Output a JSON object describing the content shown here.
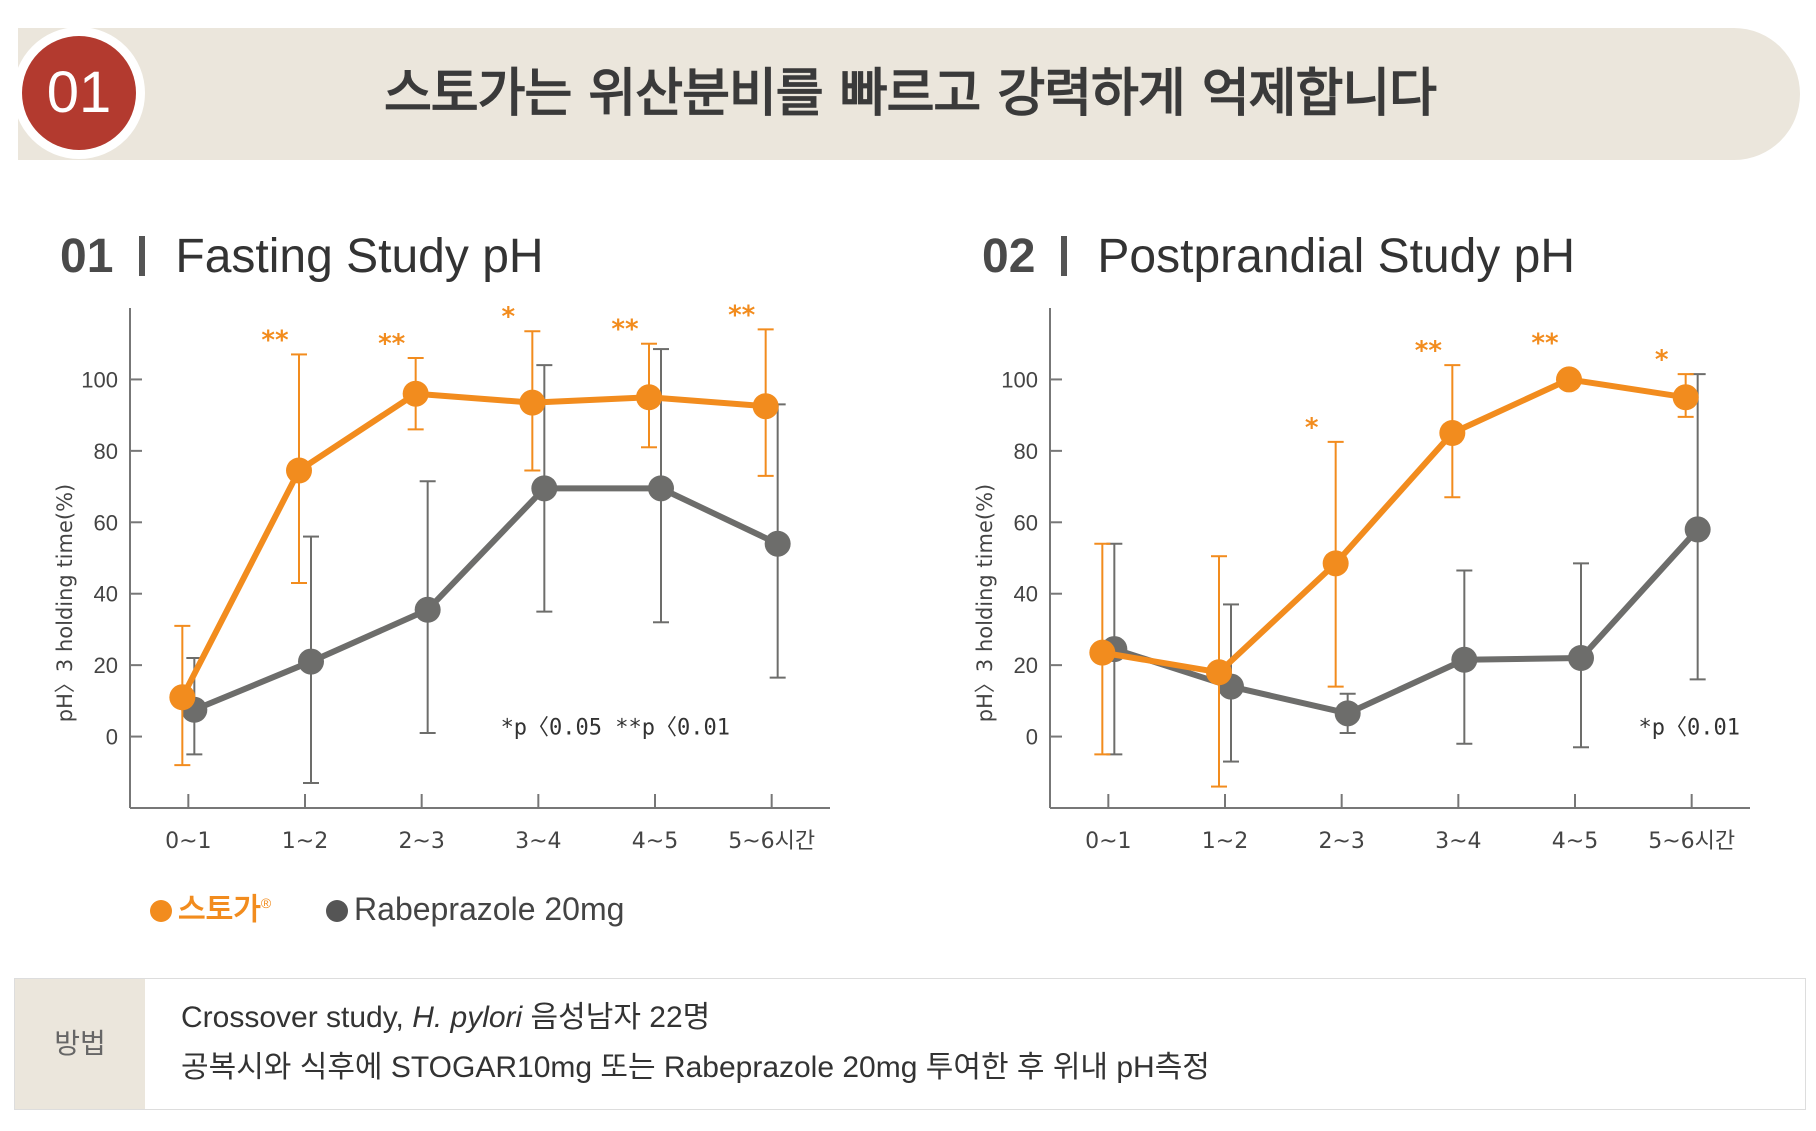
{
  "header": {
    "badge": "01",
    "title": "스토가는 위산분비를 빠르고 강력하게 억제합니다"
  },
  "charts": [
    {
      "number": "01",
      "title": "Fasting Study pH"
    },
    {
      "number": "02",
      "title": "Postprandial Study pH"
    }
  ],
  "legend": [
    {
      "label": "스토가",
      "mark": "®",
      "color": "#f28c1e"
    },
    {
      "label": "Rabeprazole 20mg",
      "color": "#6d6d6b"
    }
  ],
  "method": {
    "label": "방법",
    "line1_prefix": "Crossover study, ",
    "line1_italic": "H. pylori",
    "line1_suffix": " 음성남자 22명",
    "line2": "공복시와 식후에 STOGAR10mg 또는 Rabeprazole 20mg 투여한 후 위내 pH측정"
  },
  "colors": {
    "stogar": "#f28c1e",
    "rabeprazole": "#6d6d6b",
    "accent_badge": "#b33a2f",
    "banner": "#ebe6dc"
  },
  "chart_data": [
    {
      "type": "line",
      "title": "Fasting Study pH",
      "ylabel": "pH〉3 holding time(%)",
      "categories": [
        "0~1",
        "1~2",
        "2~3",
        "3~4",
        "4~5",
        "5~6시간"
      ],
      "yticks": [
        0,
        20,
        40,
        60,
        80,
        100
      ],
      "ylim": [
        -20,
        120
      ],
      "series": [
        {
          "name": "스토가",
          "values": [
            11,
            74.5,
            96,
            93.5,
            95,
            92.5
          ],
          "err_low": [
            -8,
            43,
            86,
            74.5,
            81,
            73
          ],
          "err_high": [
            31,
            107,
            106,
            113.5,
            110,
            114
          ]
        },
        {
          "name": "Rabeprazole 20mg",
          "values": [
            7.5,
            21,
            35.5,
            69.5,
            69.5,
            54
          ],
          "err_low": [
            -5,
            -13,
            1,
            35,
            32,
            16.5
          ],
          "err_high": [
            22,
            56,
            71.5,
            104,
            108.5,
            93
          ]
        }
      ],
      "significance": [
        "",
        "**",
        "**",
        "*",
        "**",
        "**"
      ],
      "annotation": "*p〈0.05  **p〈0.01",
      "legend_position": "bottom-left",
      "grid": false
    },
    {
      "type": "line",
      "title": "Postprandial Study pH",
      "ylabel": "pH〉3 holding time(%)",
      "categories": [
        "0~1",
        "1~2",
        "2~3",
        "3~4",
        "4~5",
        "5~6시간"
      ],
      "yticks": [
        0,
        20,
        40,
        60,
        80,
        100
      ],
      "ylim": [
        -20,
        120
      ],
      "series": [
        {
          "name": "스토가",
          "values": [
            23.5,
            18,
            48.5,
            85,
            100,
            95
          ],
          "err_low": [
            -5,
            -14,
            14,
            67,
            null,
            89.5
          ],
          "err_high": [
            54,
            50.5,
            82.5,
            104,
            null,
            101.5
          ]
        },
        {
          "name": "Rabeprazole 20mg",
          "values": [
            24.5,
            14,
            6.5,
            21.5,
            22,
            58
          ],
          "err_low": [
            -5,
            -7,
            1,
            -2,
            -3,
            16
          ],
          "err_high": [
            54,
            37,
            12,
            46.5,
            48.5,
            101.5
          ]
        }
      ],
      "significance": [
        "",
        "",
        "*",
        "**",
        "**",
        "*"
      ],
      "annotation": "*p〈0.01",
      "grid": false
    }
  ]
}
